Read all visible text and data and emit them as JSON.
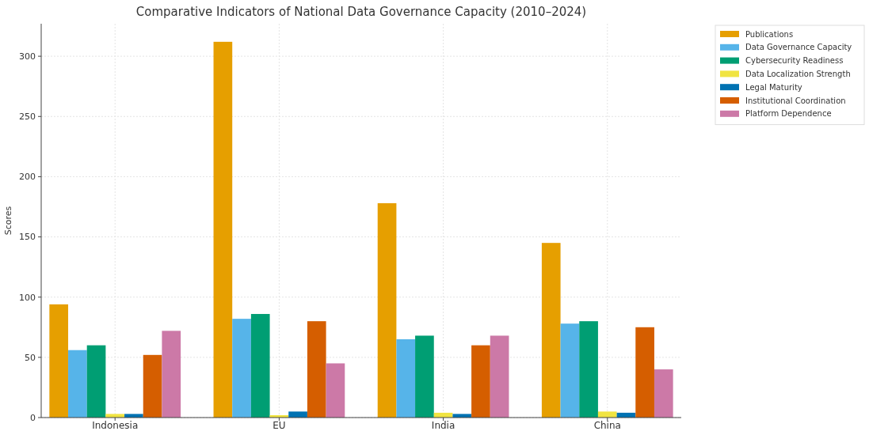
{
  "chart_data": {
    "type": "bar",
    "title": "Comparative Indicators of National Data Governance Capacity (2010–2024)",
    "ylabel": "Scores",
    "categories": [
      "Indonesia",
      "EU",
      "India",
      "China"
    ],
    "series": [
      {
        "name": "Publications",
        "color": "#e69f00",
        "values": [
          94,
          312,
          178,
          145
        ]
      },
      {
        "name": "Data Governance Capacity",
        "color": "#56b4e9",
        "values": [
          56,
          82,
          65,
          78
        ]
      },
      {
        "name": "Cybersecurity Readiness",
        "color": "#009e73",
        "values": [
          60,
          86,
          68,
          80
        ]
      },
      {
        "name": "Data Localization Strength",
        "color": "#f0e442",
        "values": [
          3,
          2,
          4,
          5
        ]
      },
      {
        "name": "Legal Maturity",
        "color": "#0072b2",
        "values": [
          3,
          5,
          3,
          4
        ]
      },
      {
        "name": "Institutional Coordination",
        "color": "#d55e00",
        "values": [
          52,
          80,
          60,
          75
        ]
      },
      {
        "name": "Platform Dependence",
        "color": "#cc79a7",
        "values": [
          72,
          45,
          68,
          40
        ]
      }
    ],
    "ylim": [
      0,
      327
    ],
    "yticks": [
      0,
      50,
      100,
      150,
      200,
      250,
      300
    ],
    "grid": true,
    "legend": "top right"
  }
}
